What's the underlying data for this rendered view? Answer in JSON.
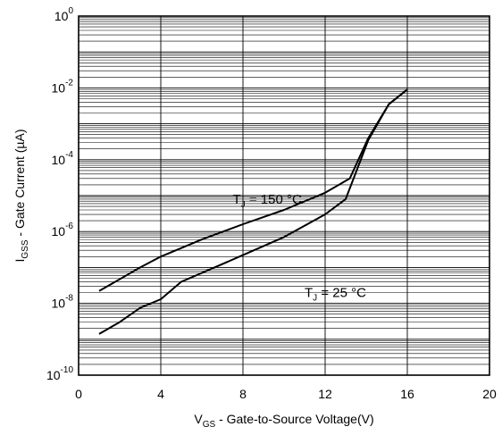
{
  "chart_data": {
    "type": "line",
    "title": "",
    "xlabel": {
      "main": "V",
      "sub": "GS",
      "rest": " - Gate-to-Source Voltage(V)"
    },
    "ylabel": {
      "main": "I",
      "sub": "GSS",
      "rest": " - Gate Current (µA)"
    },
    "xlim": [
      0,
      20
    ],
    "ylim_exponent": [
      -10,
      0
    ],
    "yscale": "log",
    "xticks": [
      0,
      4,
      8,
      12,
      16,
      20
    ],
    "yticks": [
      {
        "base": "10",
        "exp": "0",
        "value": 1
      },
      {
        "base": "10",
        "exp": "-2",
        "value": 0.01
      },
      {
        "base": "10",
        "exp": "-4",
        "value": 0.0001
      },
      {
        "base": "10",
        "exp": "-6",
        "value": 1e-06
      },
      {
        "base": "10",
        "exp": "-8",
        "value": 1e-08
      },
      {
        "base": "10",
        "exp": "-10",
        "value": 1e-10
      }
    ],
    "grid": true,
    "series": [
      {
        "name": "T_J = 150 °C",
        "label": {
          "main": "T",
          "sub": "J",
          "rest": " = 150 °C"
        },
        "points": [
          [
            1.0,
            2.2e-08
          ],
          [
            3.0,
            1e-07
          ],
          [
            4.0,
            2e-07
          ],
          [
            6.0,
            6e-07
          ],
          [
            8.0,
            1.6e-06
          ],
          [
            10.0,
            4e-06
          ],
          [
            12.0,
            1.2e-05
          ],
          [
            13.2,
            3e-05
          ],
          [
            14.1,
            0.0004
          ],
          [
            15.1,
            0.0035
          ],
          [
            16.0,
            0.009
          ]
        ]
      },
      {
        "name": "T_J = 25 °C",
        "label": {
          "main": "T",
          "sub": "J",
          "rest": " = 25 °C"
        },
        "points": [
          [
            1.0,
            1.4e-09
          ],
          [
            2.0,
            3e-09
          ],
          [
            3.0,
            7.5e-09
          ],
          [
            4.0,
            1.3e-08
          ],
          [
            5.0,
            4e-08
          ],
          [
            6.0,
            7e-08
          ],
          [
            8.0,
            2.2e-07
          ],
          [
            10.0,
            7e-07
          ],
          [
            12.0,
            3e-06
          ],
          [
            13.0,
            8e-06
          ],
          [
            14.1,
            0.00035
          ],
          [
            15.1,
            0.0035
          ],
          [
            16.0,
            0.009
          ]
        ]
      }
    ]
  }
}
